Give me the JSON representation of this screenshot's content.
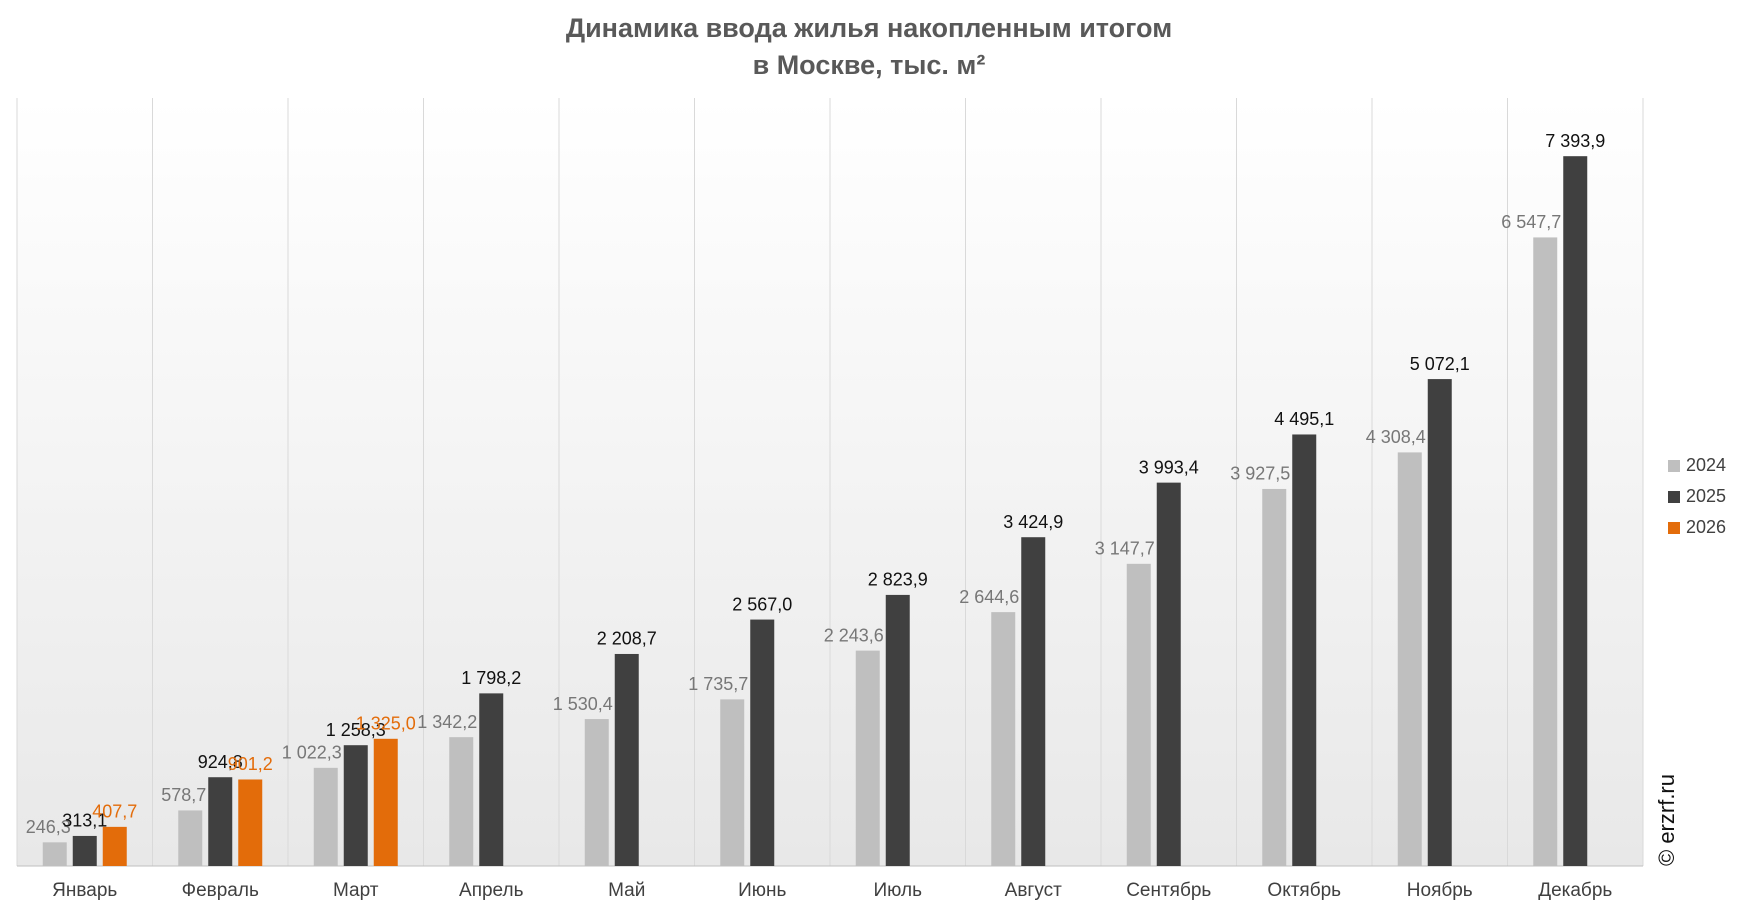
{
  "chart_data": {
    "type": "bar",
    "title": "Динамика ввода жилья накопленным итогом",
    "subtitle": "в Москве, тыс. м²",
    "watermark": "© erzrf.ru",
    "categories": [
      "Январь",
      "Февраль",
      "Март",
      "Апрель",
      "Май",
      "Июнь",
      "Июль",
      "Август",
      "Сентябрь",
      "Октябрь",
      "Ноябрь",
      "Декабрь"
    ],
    "series": [
      {
        "name": "2024",
        "color": "#bfbfbf",
        "label_color": "#777777",
        "values": [
          246.3,
          578.7,
          1022.3,
          1342.2,
          1530.4,
          1735.7,
          2243.6,
          2644.6,
          3147.7,
          3927.5,
          4308.4,
          6547.7
        ],
        "value_labels": [
          "246,3",
          "578,7",
          "1 022,3",
          "1 342,2",
          "1 530,4",
          "1 735,7",
          "2 243,6",
          "2 644,6",
          "3 147,7",
          "3 927,5",
          "4 308,4",
          "6 547,7"
        ]
      },
      {
        "name": "2025",
        "color": "#404040",
        "label_color": "#111111",
        "values": [
          313.1,
          924.8,
          1258.3,
          1798.2,
          2208.7,
          2567.0,
          2823.9,
          3424.9,
          3993.4,
          4495.1,
          5072.1,
          7393.9
        ],
        "value_labels": [
          "313,1",
          "924,8",
          "1 258,3",
          "1 798,2",
          "2 208,7",
          "2 567,0",
          "2 823,9",
          "3 424,9",
          "3 993,4",
          "4 495,1",
          "5 072,1",
          "7 393,9"
        ]
      },
      {
        "name": "2026",
        "color": "#e36c0a",
        "label_color": "#e36c0a",
        "values": [
          407.7,
          901.2,
          1325.0,
          null,
          null,
          null,
          null,
          null,
          null,
          null,
          null,
          null
        ],
        "value_labels": [
          "407,7",
          "901,2",
          "1 325,0",
          null,
          null,
          null,
          null,
          null,
          null,
          null,
          null,
          null
        ]
      }
    ],
    "ylim": [
      0,
      8000
    ],
    "legend": "right"
  }
}
